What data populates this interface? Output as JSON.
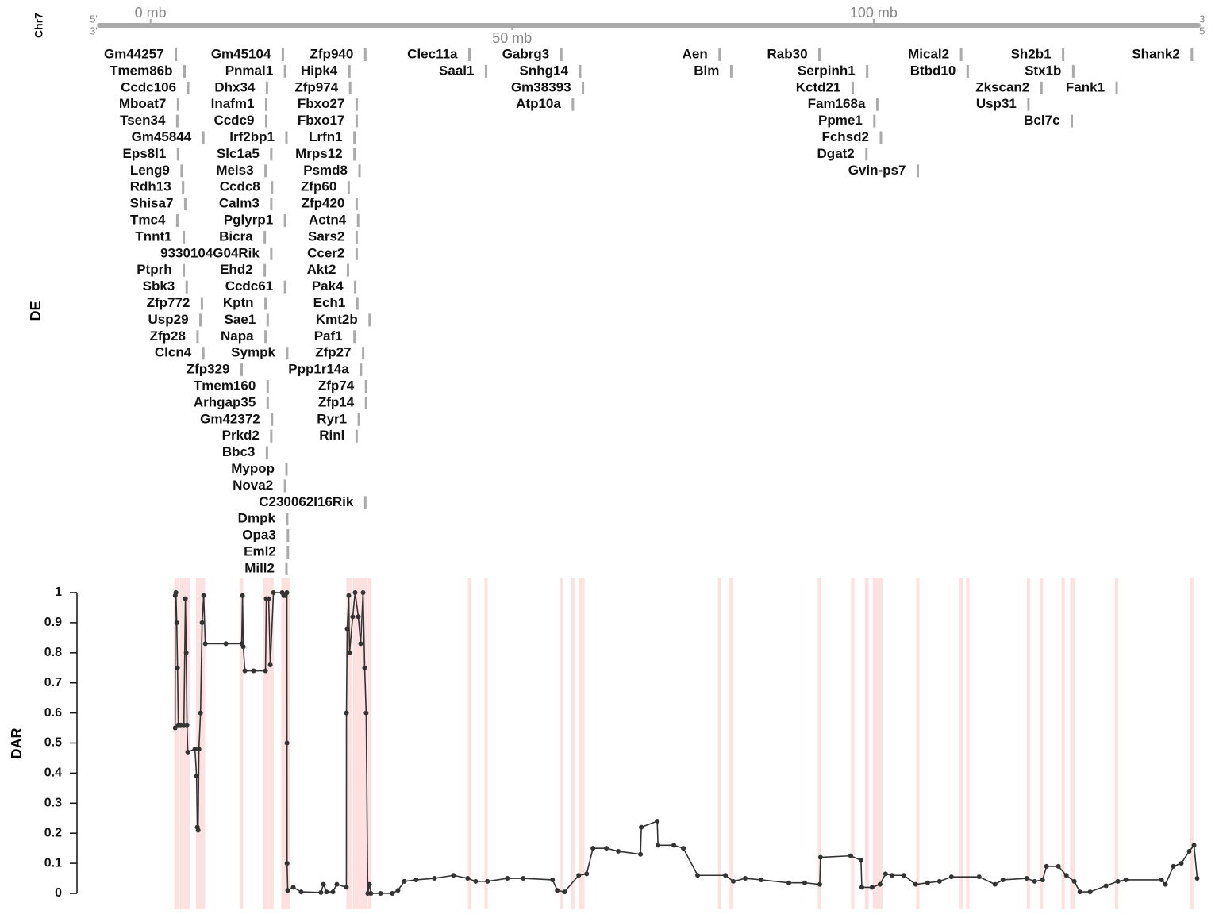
{
  "chromosome": "Chr7",
  "strand_labels": {
    "top_left": "5'",
    "bottom_left": "3'",
    "top_right": "3'",
    "bottom_right": "5'"
  },
  "gene_track": {
    "label": "DE",
    "rows": [
      [
        {
          "name": "Gm44257",
          "position": 3.5
        },
        {
          "name": "Gm45104",
          "position": 18.3
        },
        {
          "name": "Zfp940",
          "position": 29.7
        },
        {
          "name": "Clec11a",
          "position": 44.1
        },
        {
          "name": "Gabrg3",
          "position": 56.8
        },
        {
          "name": "Aen",
          "position": 78.7
        },
        {
          "name": "Rab30",
          "position": 92.5
        },
        {
          "name": "Mical2",
          "position": 112.1
        },
        {
          "name": "Sh2b1",
          "position": 126.2
        },
        {
          "name": "Shank2",
          "position": 144.0
        }
      ],
      [
        {
          "name": "Tmem86b",
          "position": 4.7
        },
        {
          "name": "Pnmal1",
          "position": 18.6
        },
        {
          "name": "Hipk4",
          "position": 27.5
        },
        {
          "name": "Saal1",
          "position": 46.4
        },
        {
          "name": "Snhg14",
          "position": 59.4
        },
        {
          "name": "Blm",
          "position": 80.3
        },
        {
          "name": "Serpinh1",
          "position": 99.1
        },
        {
          "name": "Btbd10",
          "position": 113.0
        },
        {
          "name": "Stx1b",
          "position": 127.6
        }
      ],
      [
        {
          "name": "Ccdc106",
          "position": 5.2
        },
        {
          "name": "Dhx34",
          "position": 16.1
        },
        {
          "name": "Zfp974",
          "position": 27.6
        },
        {
          "name": "Gm38393",
          "position": 59.8
        },
        {
          "name": "Kctd21",
          "position": 97.1
        },
        {
          "name": "Zkscan2",
          "position": 123.2
        },
        {
          "name": "Fank1",
          "position": 133.6
        }
      ],
      [
        {
          "name": "Mboat7",
          "position": 3.8
        },
        {
          "name": "Inafm1",
          "position": 16.0
        },
        {
          "name": "Fbxo27",
          "position": 28.5
        },
        {
          "name": "Atp10a",
          "position": 58.4
        },
        {
          "name": "Fam168a",
          "position": 100.5
        },
        {
          "name": "Usp31",
          "position": 121.4
        }
      ],
      [
        {
          "name": "Tsen34",
          "position": 3.7
        },
        {
          "name": "Ccdc9",
          "position": 16.0
        },
        {
          "name": "Fbxo17",
          "position": 28.5
        },
        {
          "name": "Ppme1",
          "position": 100.1
        },
        {
          "name": "Bcl7c",
          "position": 127.4
        }
      ],
      [
        {
          "name": "Gm45844",
          "position": 7.3
        },
        {
          "name": "Irf2bp1",
          "position": 18.8
        },
        {
          "name": "Lrfn1",
          "position": 28.2
        },
        {
          "name": "Fchsd2",
          "position": 101.0
        }
      ],
      [
        {
          "name": "Eps8l1",
          "position": 3.8
        },
        {
          "name": "Slc1a5",
          "position": 16.7
        },
        {
          "name": "Mrps12",
          "position": 28.2
        },
        {
          "name": "Dgat2",
          "position": 99.0
        }
      ],
      [
        {
          "name": "Leng9",
          "position": 4.3
        },
        {
          "name": "Meis3",
          "position": 15.9
        },
        {
          "name": "Psmd8",
          "position": 28.9
        },
        {
          "name": "Gvin-ps7",
          "position": 106.1
        }
      ],
      [
        {
          "name": "Rdh13",
          "position": 4.5
        },
        {
          "name": "Ccdc8",
          "position": 16.8
        },
        {
          "name": "Zfp60",
          "position": 27.4
        }
      ],
      [
        {
          "name": "Shisa7",
          "position": 4.8
        },
        {
          "name": "Calm3",
          "position": 16.7
        },
        {
          "name": "Zfp420",
          "position": 28.5
        }
      ],
      [
        {
          "name": "Tmc4",
          "position": 3.7
        },
        {
          "name": "Pglyrp1",
          "position": 18.6
        },
        {
          "name": "Actn4",
          "position": 28.7
        }
      ],
      [
        {
          "name": "Tnnt1",
          "position": 4.6
        },
        {
          "name": "Bicra",
          "position": 15.8
        },
        {
          "name": "Sars2",
          "position": 28.5
        }
      ],
      [
        {
          "name": "9330104G04Rik",
          "position": 16.7
        },
        {
          "name": "Ccer2",
          "position": 28.5
        }
      ],
      [
        {
          "name": "Ptprh",
          "position": 4.6
        },
        {
          "name": "Ehd2",
          "position": 15.8
        },
        {
          "name": "Akt2",
          "position": 27.3
        }
      ],
      [
        {
          "name": "Sbk3",
          "position": 5.0
        },
        {
          "name": "Ccdc61",
          "position": 18.6
        },
        {
          "name": "Pak4",
          "position": 28.3
        }
      ],
      [
        {
          "name": "Zfp772",
          "position": 7.1
        },
        {
          "name": "Kptn",
          "position": 15.9
        },
        {
          "name": "Ech1",
          "position": 28.6
        }
      ],
      [
        {
          "name": "Usp29",
          "position": 6.9
        },
        {
          "name": "Sae1",
          "position": 16.2
        },
        {
          "name": "Kmt2b",
          "position": 30.3
        }
      ],
      [
        {
          "name": "Zfp28",
          "position": 6.5
        },
        {
          "name": "Napa",
          "position": 15.9
        },
        {
          "name": "Paf1",
          "position": 28.2
        }
      ],
      [
        {
          "name": "Clcn4",
          "position": 7.3
        },
        {
          "name": "Sympk",
          "position": 18.9
        },
        {
          "name": "Zfp27",
          "position": 29.4
        }
      ],
      [
        {
          "name": "Zfp329",
          "position": 12.6
        },
        {
          "name": "Ppp1r14a",
          "position": 29.1
        }
      ],
      [
        {
          "name": "Tmem160",
          "position": 16.2
        },
        {
          "name": "Zfp74",
          "position": 29.8
        }
      ],
      [
        {
          "name": "Arhgap35",
          "position": 16.2
        },
        {
          "name": "Zfp14",
          "position": 29.8
        }
      ],
      [
        {
          "name": "Gm42372",
          "position": 16.8
        },
        {
          "name": "Ryr1",
          "position": 28.8
        }
      ],
      [
        {
          "name": "Prkd2",
          "position": 16.7
        },
        {
          "name": "Rinl",
          "position": 28.5
        }
      ],
      [
        {
          "name": "Bbc3",
          "position": 16.1
        }
      ],
      [
        {
          "name": "Mypop",
          "position": 18.8
        }
      ],
      [
        {
          "name": "Nova2",
          "position": 18.6
        }
      ],
      [
        {
          "name": "C230062I16Rik",
          "position": 29.7
        }
      ],
      [
        {
          "name": "Dmpk",
          "position": 18.9
        }
      ],
      [
        {
          "name": "Opa3",
          "position": 19.0
        }
      ],
      [
        {
          "name": "Eml2",
          "position": 19.0
        }
      ],
      [
        {
          "name": "Mill2",
          "position": 18.8
        }
      ]
    ]
  },
  "chart_data": {
    "type": "line",
    "ylabel": "DAR",
    "color": "#333333",
    "xlim": [
      -7.1,
      144.9
    ],
    "xticks": [
      {
        "value": 0,
        "label": "0 mb"
      },
      {
        "value": 50,
        "label": "50 mb"
      },
      {
        "value": 100,
        "label": "100 mb"
      }
    ],
    "ylim": [
      0,
      1
    ],
    "yticks": [
      0,
      0.1,
      0.2,
      0.3,
      0.4,
      0.5,
      0.6,
      0.7,
      0.8,
      0.9,
      1
    ],
    "x": [
      3.4,
      3.41,
      3.51,
      3.62,
      3.73,
      3.84,
      4.17,
      4.61,
      4.82,
      4.93,
      5.04,
      5.15,
      6.14,
      6.36,
      6.47,
      6.58,
      6.69,
      6.91,
      7.13,
      7.35,
      7.57,
      10.42,
      12.61,
      12.72,
      12.83,
      13.05,
      14.25,
      15.9,
      16.01,
      16.34,
      16.56,
      17.0,
      18.2,
      18.42,
      18.64,
      18.86,
      18.87,
      18.88,
      18.97,
      19.74,
      20.83,
      23.57,
      23.9,
      24.34,
      25.22,
      25.77,
      27.08,
      27.09,
      27.19,
      27.41,
      27.52,
      27.96,
      28.29,
      28.73,
      29.06,
      29.39,
      29.61,
      29.82,
      30.04,
      30.26,
      30.48,
      31.8,
      33.44,
      34.21,
      35.09,
      36.73,
      39.25,
      41.89,
      43.86,
      44.96,
      46.6,
      49.34,
      51.54,
      55.59,
      56.25,
      57.24,
      59.21,
      60.31,
      61.18,
      63.05,
      64.69,
      67.76,
      67.87,
      70.07,
      70.18,
      72.37,
      73.68,
      75.66,
      79.5,
      80.59,
      82.24,
      84.43,
      88.27,
      90.46,
      92.54,
      92.65,
      96.82,
      98.25,
      98.36,
      99.78,
      100.88,
      101.64,
      102.52,
      104.17,
      105.81,
      107.46,
      109.1,
      110.75,
      114.58,
      116.78,
      117.87,
      121.16,
      122.26,
      123.36,
      123.9,
      125.55,
      126.64,
      127.74,
      128.51,
      129.93,
      132.13,
      133.77,
      134.87,
      139.8,
      140.35,
      141.45,
      142.54,
      143.64,
      144.3,
      144.74
    ],
    "values": [
      0.55,
      0.99,
      1.0,
      0.9,
      0.75,
      0.56,
      0.56,
      0.56,
      0.98,
      0.8,
      0.56,
      0.47,
      0.48,
      0.39,
      0.22,
      0.21,
      0.48,
      0.6,
      0.9,
      0.99,
      0.83,
      0.83,
      0.83,
      0.99,
      0.82,
      0.74,
      0.74,
      0.74,
      0.98,
      0.98,
      0.76,
      1.0,
      1.0,
      0.99,
      0.99,
      1.0,
      0.5,
      0.1,
      0.01,
      0.02,
      0.005,
      0.003,
      0.03,
      0.005,
      0.005,
      0.03,
      0.02,
      0.6,
      0.88,
      0.99,
      0.8,
      0.92,
      1.0,
      0.92,
      0.83,
      1.0,
      0.75,
      0.6,
      0.0,
      0.03,
      0.0,
      0.0,
      0.0,
      0.01,
      0.04,
      0.045,
      0.05,
      0.06,
      0.05,
      0.04,
      0.04,
      0.05,
      0.05,
      0.045,
      0.01,
      0.005,
      0.06,
      0.065,
      0.15,
      0.15,
      0.14,
      0.13,
      0.22,
      0.24,
      0.16,
      0.16,
      0.15,
      0.06,
      0.06,
      0.04,
      0.05,
      0.045,
      0.035,
      0.035,
      0.03,
      0.12,
      0.125,
      0.11,
      0.02,
      0.02,
      0.03,
      0.065,
      0.06,
      0.06,
      0.03,
      0.035,
      0.04,
      0.055,
      0.055,
      0.03,
      0.045,
      0.05,
      0.04,
      0.045,
      0.09,
      0.09,
      0.06,
      0.04,
      0.005,
      0.005,
      0.025,
      0.04,
      0.045,
      0.045,
      0.03,
      0.09,
      0.1,
      0.14,
      0.16,
      0.05
    ]
  }
}
